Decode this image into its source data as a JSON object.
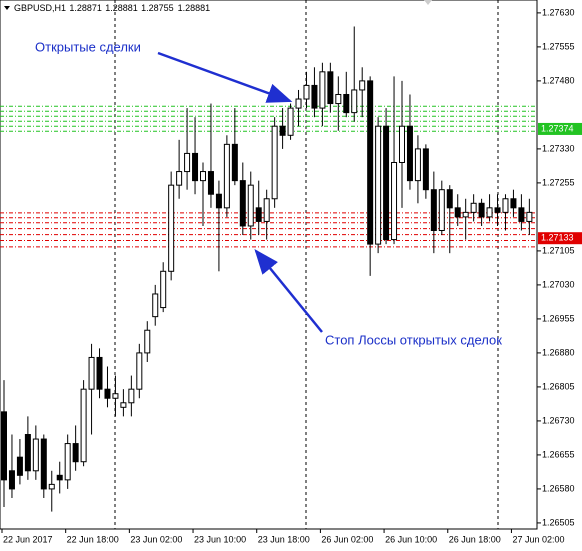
{
  "chart_data": {
    "type": "candlestick",
    "header": {
      "symbol": "GBPUSD,H1",
      "ohlc": [
        1.28871,
        1.28881,
        1.28755,
        1.28881
      ]
    },
    "annotations": [
      "Открытые сделки",
      "Стоп Лоссы открытых сделок"
    ],
    "categories": [
      "22 Jun 2017",
      null,
      null,
      null,
      null,
      null,
      null,
      null,
      "22 Jun 18:00",
      null,
      null,
      null,
      null,
      null,
      null,
      null,
      "23 Jun 02:00",
      null,
      null,
      null,
      null,
      null,
      null,
      null,
      "23 Jun 10:00",
      null,
      null,
      null,
      null,
      null,
      null,
      null,
      "23 Jun 18:00",
      null,
      null,
      null,
      null,
      null,
      null,
      null,
      "26 Jun 02:00",
      null,
      null,
      null,
      null,
      null,
      null,
      null,
      "26 Jun 10:00",
      null,
      null,
      null,
      null,
      null,
      null,
      null,
      "26 Jun 18:00",
      null,
      null,
      null,
      null,
      null,
      null,
      null,
      "27 Jun 02:00",
      null,
      null
    ],
    "open": [
      1.2675,
      1.2662,
      1.2665,
      1.267,
      1.2662,
      1.2669,
      1.2658,
      1.2661,
      1.266,
      1.2668,
      1.2664,
      1.268,
      1.2687,
      1.268,
      1.2678,
      1.2676,
      1.2677,
      1.268,
      1.2688,
      1.2696,
      1.2698,
      1.2706,
      1.2725,
      1.2728,
      1.2732,
      1.2726,
      1.2728,
      1.2723,
      1.272,
      1.2734,
      1.2726,
      1.2716,
      1.272,
      1.2717,
      1.2722,
      1.2738,
      1.2736,
      1.2742,
      1.2744,
      1.2747,
      1.2742,
      1.275,
      1.2743,
      1.2745,
      1.2741,
      1.2746,
      1.2748,
      1.2712,
      1.2738,
      1.2713,
      1.273,
      1.2738,
      1.2726,
      1.2733,
      1.2724,
      1.2715,
      1.2724,
      1.272,
      1.2718,
      1.2719,
      1.2721,
      1.2718,
      1.272,
      1.2719,
      1.2722,
      1.272,
      1.2717
    ],
    "high": [
      1.2682,
      1.267,
      1.2669,
      1.2674,
      1.2672,
      1.267,
      1.2662,
      1.2664,
      1.267,
      1.2672,
      1.2682,
      1.269,
      1.2689,
      1.2685,
      1.2683,
      1.268,
      1.2683,
      1.269,
      1.2695,
      1.2703,
      1.2708,
      1.2728,
      1.2735,
      1.2742,
      1.274,
      1.273,
      1.2743,
      1.2726,
      1.2736,
      1.2742,
      1.273,
      1.2728,
      1.2726,
      1.2724,
      1.274,
      1.2742,
      1.2743,
      1.2746,
      1.275,
      1.2751,
      1.2752,
      1.2752,
      1.2749,
      1.275,
      1.276,
      1.2751,
      1.2749,
      1.274,
      1.2742,
      1.2749,
      1.2748,
      1.2745,
      1.2736,
      1.2734,
      1.2728,
      1.2726,
      1.2725,
      1.2723,
      1.2722,
      1.2723,
      1.2722,
      1.2723,
      1.2723,
      1.2723,
      1.2724,
      1.2723,
      1.2722
    ],
    "low": [
      1.2654,
      1.2656,
      1.2659,
      1.266,
      1.266,
      1.2656,
      1.2653,
      1.2657,
      1.2658,
      1.2662,
      1.2663,
      1.267,
      1.2678,
      1.2676,
      1.2674,
      1.2674,
      1.2674,
      1.2678,
      1.2686,
      1.2694,
      1.2697,
      1.2704,
      1.2722,
      1.2724,
      1.2723,
      1.2716,
      1.272,
      1.2706,
      1.2718,
      1.2725,
      1.2714,
      1.2713,
      1.2714,
      1.2713,
      1.272,
      1.2733,
      1.2735,
      1.2738,
      1.2742,
      1.274,
      1.2738,
      1.2741,
      1.2737,
      1.274,
      1.2739,
      1.274,
      1.2705,
      1.271,
      1.2712,
      1.2712,
      1.272,
      1.2724,
      1.2721,
      1.2722,
      1.271,
      1.2714,
      1.271,
      1.2716,
      1.2713,
      1.2717,
      1.2716,
      1.2717,
      1.2716,
      1.2715,
      1.2718,
      1.2715,
      1.2714
    ],
    "close": [
      1.266,
      1.2658,
      1.2661,
      1.2662,
      1.2669,
      1.2658,
      1.2659,
      1.266,
      1.2668,
      1.2664,
      1.268,
      1.2687,
      1.268,
      1.2678,
      1.2679,
      1.2677,
      1.268,
      1.2688,
      1.2693,
      1.2701,
      1.2706,
      1.2725,
      1.2728,
      1.2732,
      1.2726,
      1.2728,
      1.2723,
      1.272,
      1.2734,
      1.2726,
      1.2716,
      1.2725,
      1.2717,
      1.2722,
      1.2738,
      1.2736,
      1.2742,
      1.2744,
      1.2747,
      1.2742,
      1.275,
      1.2743,
      1.2745,
      1.2741,
      1.2746,
      1.2748,
      1.2712,
      1.2738,
      1.2713,
      1.273,
      1.2738,
      1.2726,
      1.2733,
      1.2724,
      1.2715,
      1.2724,
      1.272,
      1.2718,
      1.2719,
      1.2721,
      1.2718,
      1.272,
      1.2719,
      1.2722,
      1.272,
      1.2717,
      1.2719
    ],
    "open_order_lines": {
      "color": "#22c322",
      "values": [
        1.27424,
        1.27413,
        1.27402,
        1.27391,
        1.2738,
        1.27369
      ],
      "label": 1.27374
    },
    "stop_loss_lines": {
      "color": "#e00000",
      "values": [
        1.27189,
        1.27178,
        1.27167,
        1.27154,
        1.27141,
        1.27128,
        1.27114
      ],
      "label": 1.27133
    },
    "ylim": [
      1.26496,
      1.27654
    ],
    "yticks": [
      {
        "value": 1.2763,
        "label": "1.27630"
      },
      1.27555,
      {
        "value": 1.2748,
        "label": "1.27480"
      },
      {
        "value": 1.2733,
        "label": "1.27330"
      },
      1.27255,
      1.27105,
      {
        "value": 1.2703,
        "label": "1.27030"
      },
      1.26955,
      {
        "value": 1.2688,
        "label": "1.26880"
      },
      1.26805,
      {
        "value": 1.2673,
        "label": "1.26730"
      },
      1.26655,
      {
        "value": 1.2658,
        "label": "1.26580"
      },
      1.26505
    ]
  }
}
